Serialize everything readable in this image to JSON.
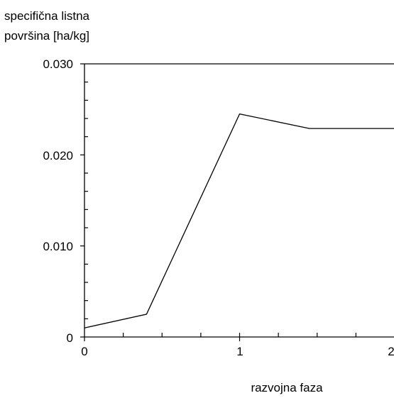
{
  "chart_data": {
    "type": "line",
    "ylabel_lines": [
      "specifična listna",
      "površina [ha/kg]"
    ],
    "xlabel": "razvojna faza",
    "ylim": [
      0,
      0.03
    ],
    "xlim": [
      0,
      2
    ],
    "x_ticks": [
      "0",
      "1",
      "2"
    ],
    "y_ticks": [
      "0",
      "0.010",
      "0.020",
      "0.030"
    ],
    "grid": false,
    "series": [
      {
        "x": [
          0,
          0.4,
          1.0,
          1.45,
          2.0
        ],
        "y": [
          0.001,
          0.0025,
          0.0245,
          0.0229,
          0.0229
        ]
      }
    ]
  }
}
